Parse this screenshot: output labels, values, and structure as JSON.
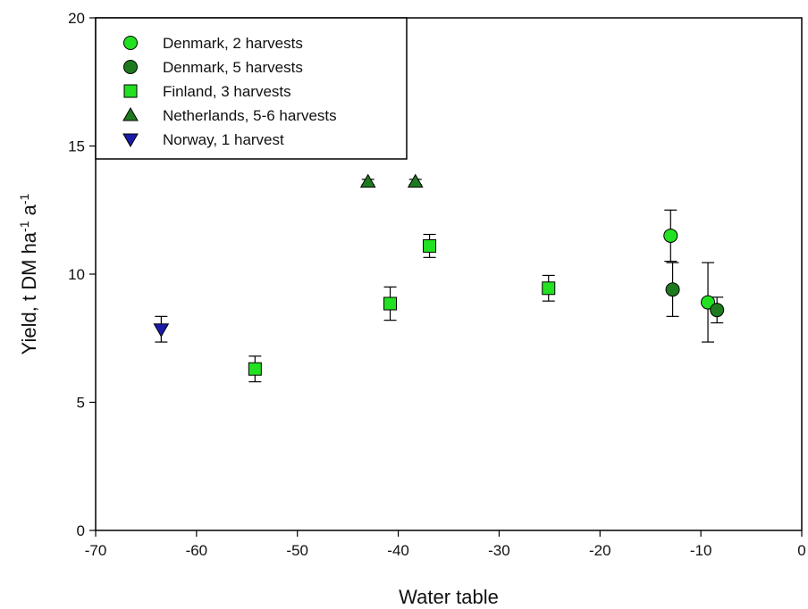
{
  "chart_data": {
    "type": "scatter",
    "xlabel": "Water table",
    "ylabel_main": "Yield, t DM ha",
    "ylabel_exp1": "-1",
    "ylabel_mid": " a",
    "ylabel_exp2": "-1",
    "xlim": [
      -70,
      0
    ],
    "ylim": [
      0,
      20
    ],
    "xticks": [
      "-70",
      "-60",
      "-50",
      "-40",
      "-30",
      "-20",
      "-10",
      "0"
    ],
    "xtick_values": [
      -70,
      -60,
      -50,
      -40,
      -30,
      -20,
      -10,
      0
    ],
    "yticks": [
      "0",
      "5",
      "10",
      "15",
      "20"
    ],
    "ytick_values": [
      0,
      5,
      10,
      15,
      20
    ],
    "grid": false,
    "legend_position": "top-left",
    "series": [
      {
        "name": "Denmark, 2 harvests",
        "marker": "circle",
        "color": "#22e022",
        "points": [
          {
            "x": -13.0,
            "y": 11.5,
            "err": 1.0
          },
          {
            "x": -9.3,
            "y": 8.9,
            "err": 1.55
          }
        ]
      },
      {
        "name": "Denmark, 5 harvests",
        "marker": "circle",
        "color": "#1e7a1e",
        "points": [
          {
            "x": -12.8,
            "y": 9.4,
            "err": 1.05
          },
          {
            "x": -8.4,
            "y": 8.6,
            "err": 0.5
          }
        ]
      },
      {
        "name": "Finland, 3 harvests",
        "marker": "square",
        "color": "#22e022",
        "points": [
          {
            "x": -54.2,
            "y": 6.3,
            "err": 0.5
          },
          {
            "x": -40.8,
            "y": 8.85,
            "err": 0.65
          },
          {
            "x": -36.9,
            "y": 11.1,
            "err": 0.45
          },
          {
            "x": -25.1,
            "y": 9.45,
            "err": 0.5
          }
        ]
      },
      {
        "name": "Netherlands, 5-6 harvests",
        "marker": "triangle-up",
        "color": "#1e7a1e",
        "points": [
          {
            "x": -43.0,
            "y": 13.6,
            "err": 0.1
          },
          {
            "x": -38.3,
            "y": 13.6,
            "err": 0.1
          }
        ]
      },
      {
        "name": "Norway, 1 harvest",
        "marker": "triangle-down",
        "color": "#1a1aaa",
        "points": [
          {
            "x": -63.5,
            "y": 7.85,
            "err": 0.5
          }
        ]
      }
    ]
  }
}
